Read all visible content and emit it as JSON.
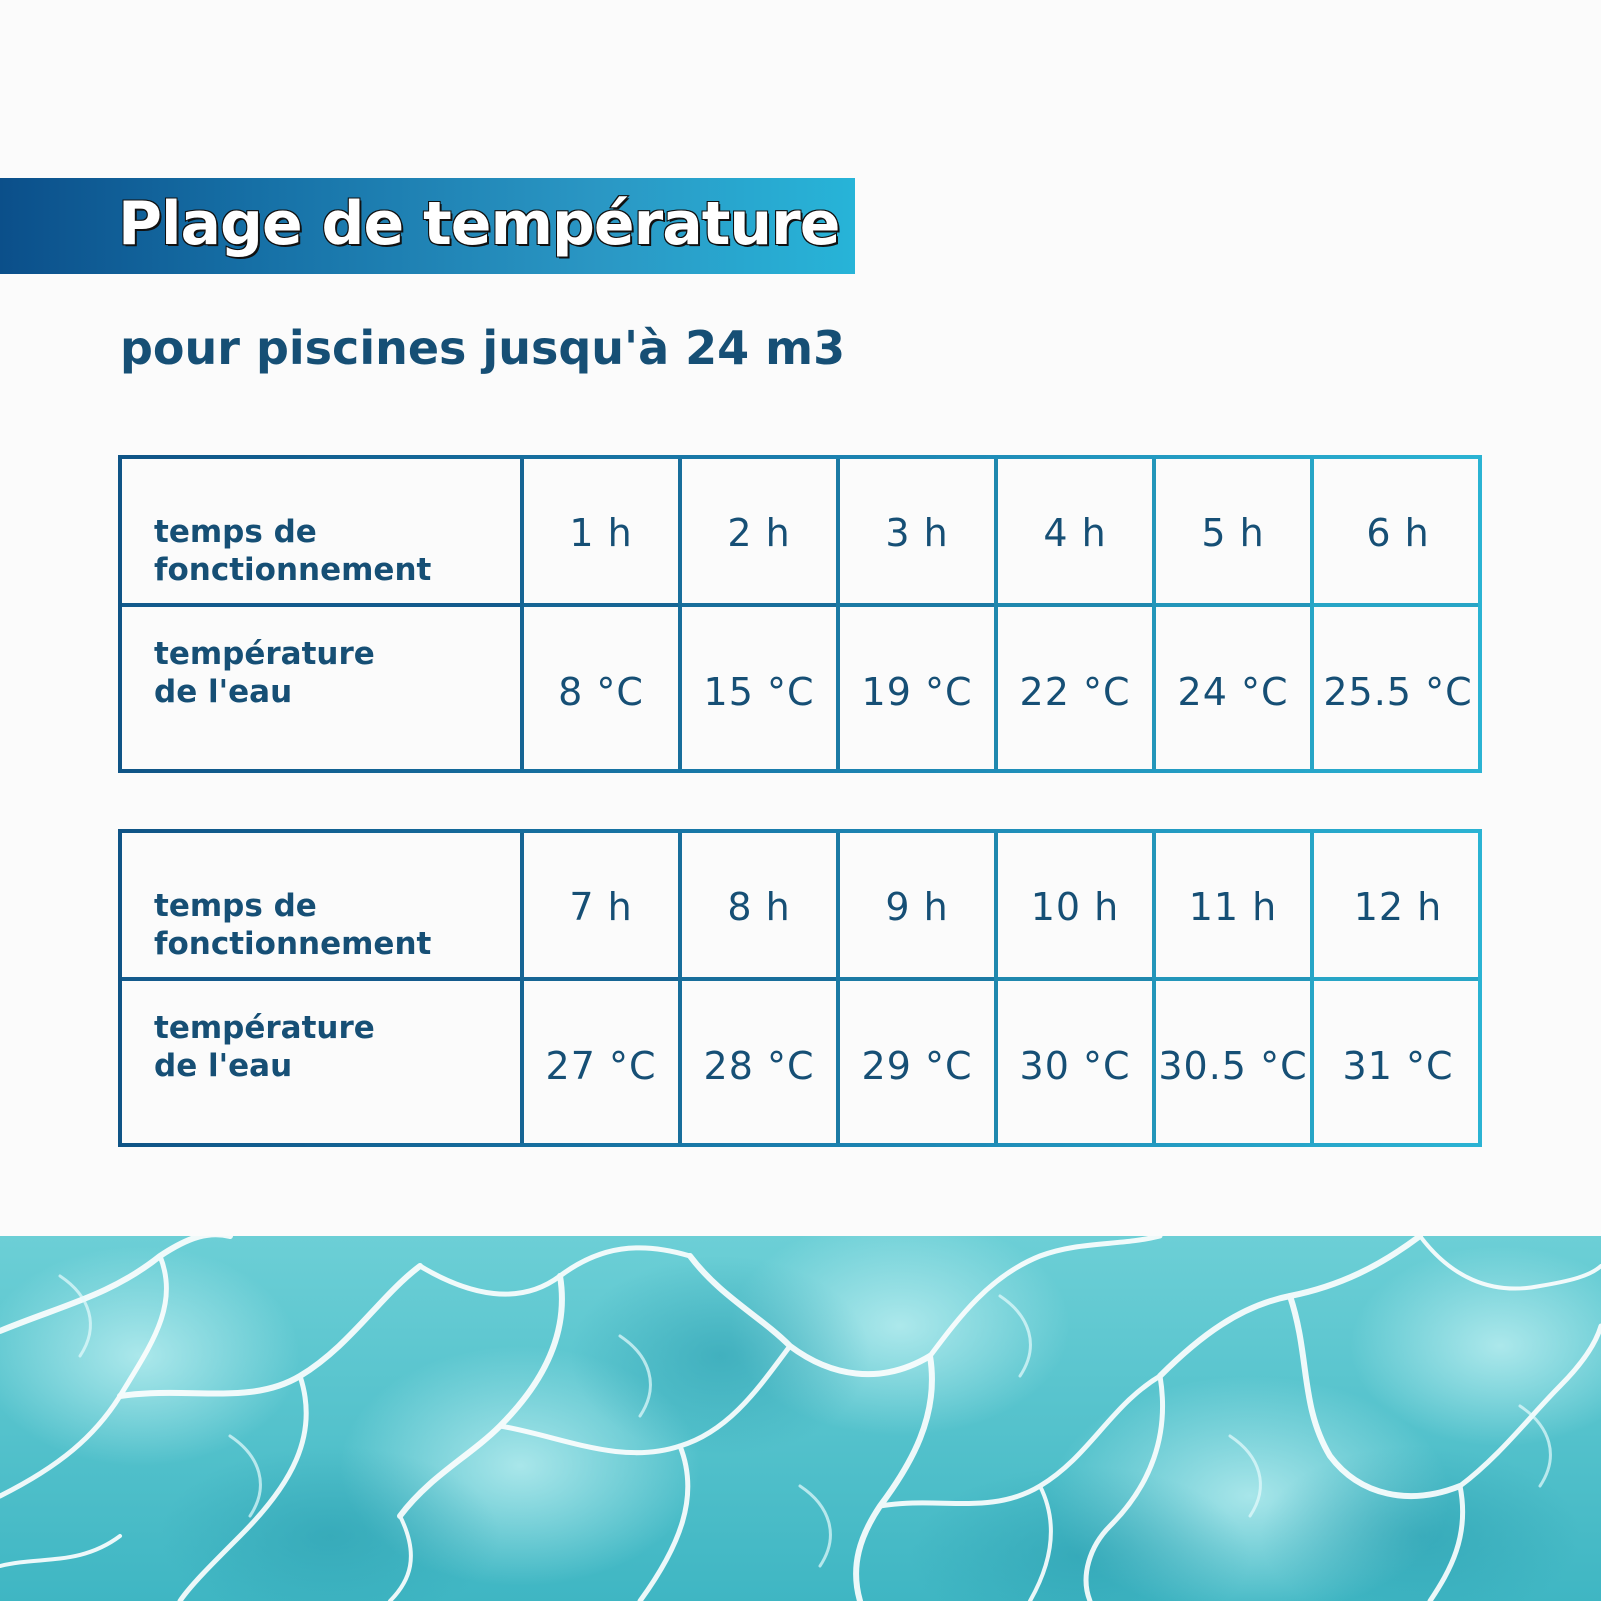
{
  "title": "Plage de température",
  "subtitle": "pour piscines jusqu'à 24 m3",
  "colors": {
    "banner_start": "#0b4f8a",
    "banner_end": "#27b4d8",
    "text": "#164f75",
    "water": "#5fc6d0"
  },
  "tables": [
    {
      "runtime_label_line1": "temps de",
      "runtime_label_line2": "fonctionnement",
      "temperature_label_line1": "température",
      "temperature_label_line2": "de l'eau",
      "hours": [
        "1 h",
        "2 h",
        "3 h",
        "4 h",
        "5 h",
        "6 h"
      ],
      "temperatures": [
        "8 °C",
        "15 °C",
        "19 °C",
        "22 °C",
        "24 °C",
        "25.5 °C"
      ]
    },
    {
      "runtime_label_line1": "temps de",
      "runtime_label_line2": "fonctionnement",
      "temperature_label_line1": "température",
      "temperature_label_line2": "de l'eau",
      "hours": [
        "7 h",
        "8 h",
        "9 h",
        "10 h",
        "11 h",
        "12 h"
      ],
      "temperatures": [
        "27 °C",
        "28 °C",
        "29 °C",
        "30 °C",
        "30.5 °C",
        "31 °C"
      ]
    }
  ]
}
